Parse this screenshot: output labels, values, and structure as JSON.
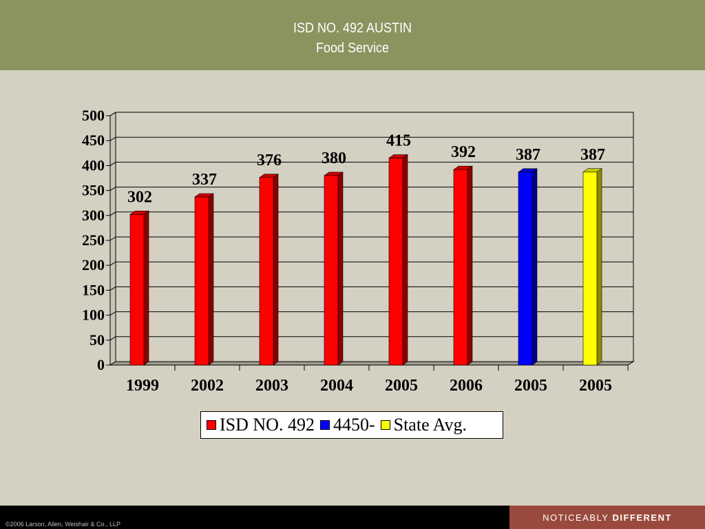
{
  "header": {
    "title_line1": "ISD NO. 492 AUSTIN",
    "title_line2": "Food Service"
  },
  "footer": {
    "copyright": "©2006 Larson, Allen, Weishair & Co., LLP",
    "tagline_regular": "NOTICEABLY",
    "tagline_bold": "DIFFERENT"
  },
  "chart_data": {
    "type": "bar",
    "categories": [
      "1999",
      "2002",
      "2003",
      "2004",
      "2005",
      "2006",
      "2005",
      "2005"
    ],
    "values": [
      302,
      337,
      376,
      380,
      415,
      392,
      387,
      387
    ],
    "bar_series": [
      "ISD NO. 492",
      "ISD NO. 492",
      "ISD NO. 492",
      "ISD NO. 492",
      "ISD NO. 492",
      "ISD NO. 492",
      "4450-",
      "State Avg."
    ],
    "series": [
      {
        "name": "ISD NO. 492",
        "color": "#ff0000"
      },
      {
        "name": "4450-",
        "color": "#0000ff"
      },
      {
        "name": "State Avg.",
        "color": "#ffff00"
      }
    ],
    "ylim": [
      0,
      500
    ],
    "yticks": [
      0,
      50,
      100,
      150,
      200,
      250,
      300,
      350,
      400,
      450,
      500
    ],
    "grid": true,
    "legend_position": "bottom"
  }
}
